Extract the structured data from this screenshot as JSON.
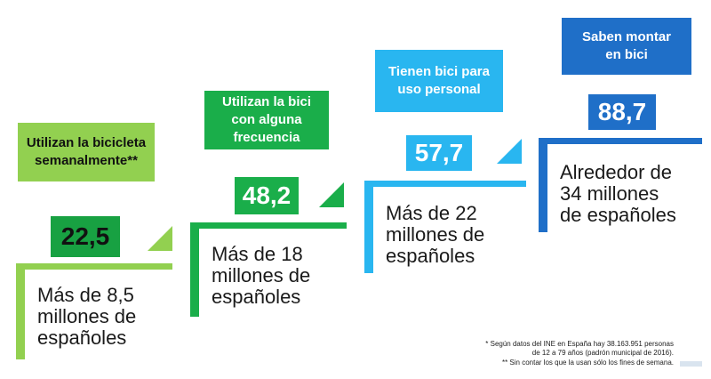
{
  "colors": {
    "light_green": "#92d050",
    "mid_green": "#1aae4a",
    "light_blue": "#29b6f0",
    "dark_blue": "#1f6fc8"
  },
  "steps": [
    {
      "label": "Utilizan la bicicleta semanalmente**",
      "value": "22,5",
      "description": "Más de 8,5\nmillones de\nespañoles"
    },
    {
      "label": "Utilizan la bici con alguna frecuencia",
      "value": "48,2",
      "description": "Más de 18\nmillones de\nespañoles"
    },
    {
      "label": "Tienen bici para uso personal",
      "value": "57,7",
      "description": "Más de 22\nmillones de\nespañoles"
    },
    {
      "label": "Saben montar en bici",
      "value": "88,7",
      "description": "Alrededor de\n34 millones\nde españoles"
    }
  ],
  "footnotes": {
    "line1": "* Según datos del INE en España hay 38.163.951 personas\nde 12 a 79 años (padrón municipal de 2016).",
    "line2": "** Sin contar los que la usan sólo los fines de semana."
  }
}
